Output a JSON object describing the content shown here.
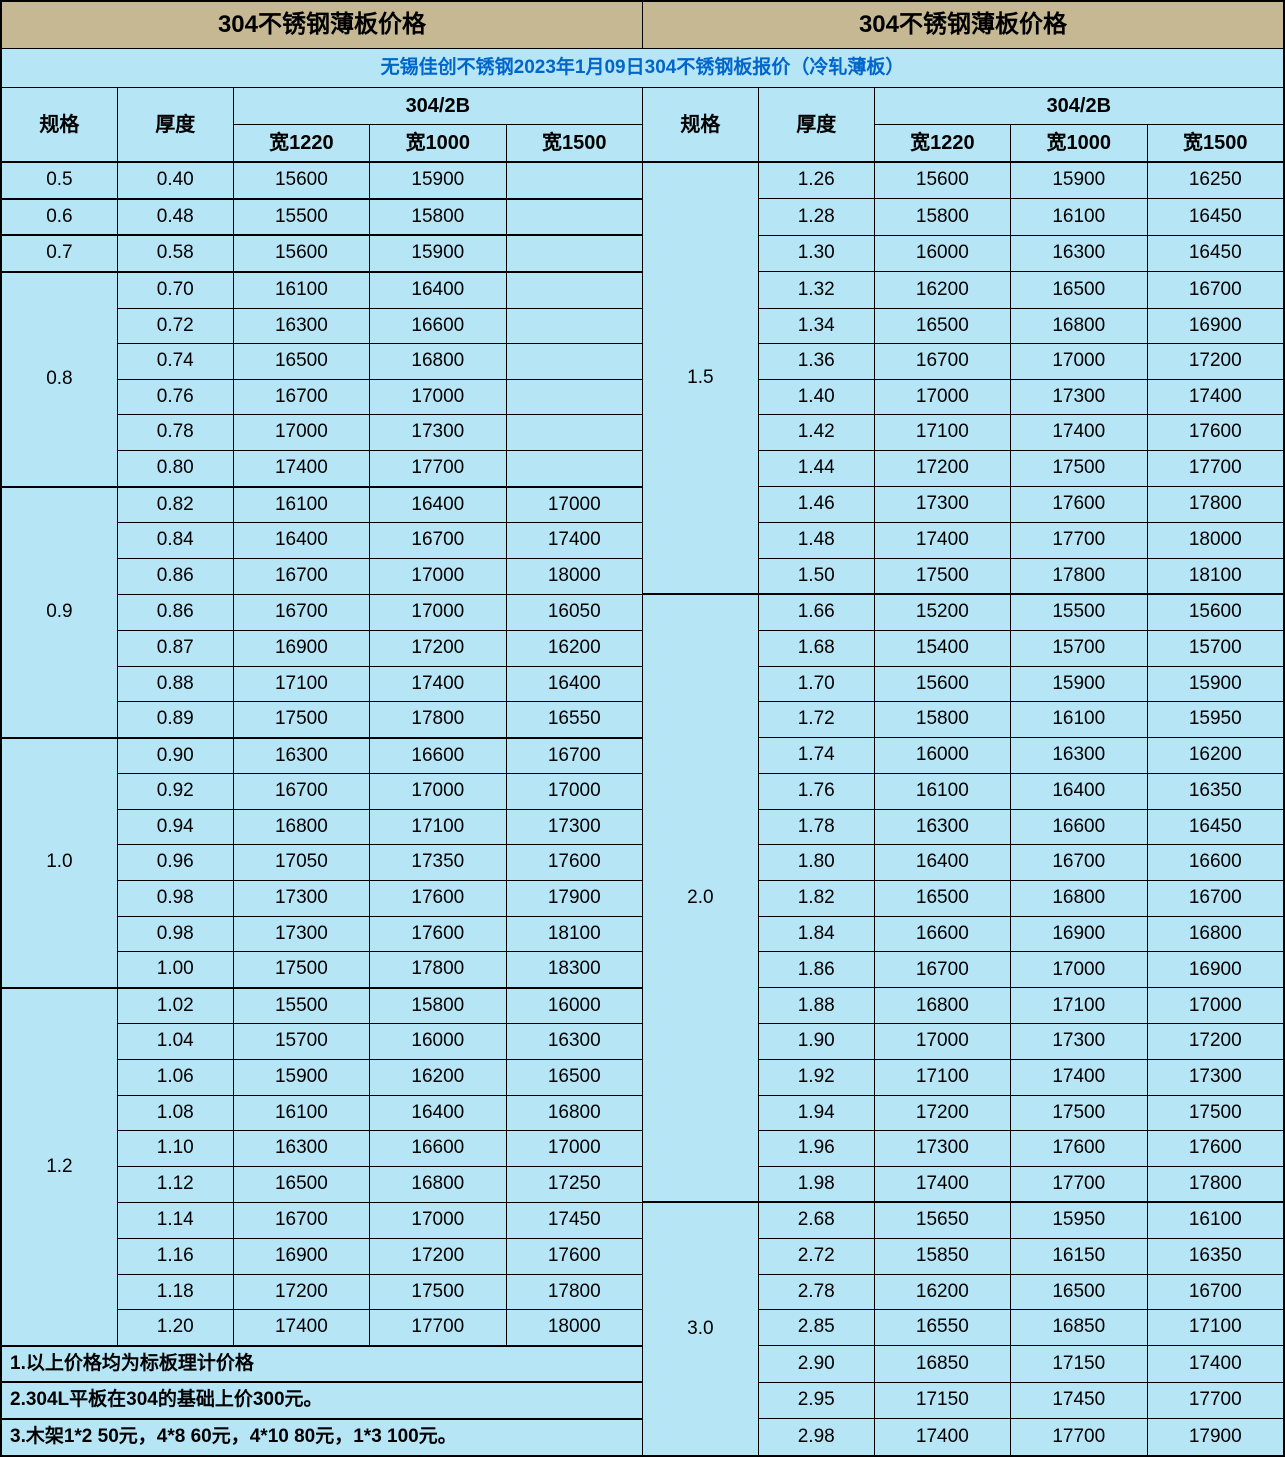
{
  "title_left": "304不锈钢薄板价格",
  "title_right": "304不锈钢薄板价格",
  "subtitle": "无锡佳创不锈钢2023年1月09日304不锈钢板报价（冷轧薄板）",
  "cols": {
    "spec": "规格",
    "thick": "厚度",
    "group": "304/2B",
    "w1220": "宽1220",
    "w1000": "宽1000",
    "w1500": "宽1500"
  },
  "notes": [
    "1.以上价格均为标板理计价格",
    "2.304L平板在304的基础上价300元。",
    "3.木架1*2 50元，4*8 60元，4*10 80元，1*3 100元。"
  ],
  "left_groups": [
    {
      "spec": "0.5",
      "rows": [
        {
          "t": "0.40",
          "a": "15600",
          "b": "15900",
          "c": ""
        }
      ]
    },
    {
      "spec": "0.6",
      "rows": [
        {
          "t": "0.48",
          "a": "15500",
          "b": "15800",
          "c": ""
        }
      ]
    },
    {
      "spec": "0.7",
      "rows": [
        {
          "t": "0.58",
          "a": "15600",
          "b": "15900",
          "c": ""
        }
      ]
    },
    {
      "spec": "0.8",
      "rows": [
        {
          "t": "0.70",
          "a": "16100",
          "b": "16400",
          "c": ""
        },
        {
          "t": "0.72",
          "a": "16300",
          "b": "16600",
          "c": ""
        },
        {
          "t": "0.74",
          "a": "16500",
          "b": "16800",
          "c": ""
        },
        {
          "t": "0.76",
          "a": "16700",
          "b": "17000",
          "c": ""
        },
        {
          "t": "0.78",
          "a": "17000",
          "b": "17300",
          "c": ""
        },
        {
          "t": "0.80",
          "a": "17400",
          "b": "17700",
          "c": ""
        }
      ]
    },
    {
      "spec": "0.9",
      "rows": [
        {
          "t": "0.82",
          "a": "16100",
          "b": "16400",
          "c": "17000"
        },
        {
          "t": "0.84",
          "a": "16400",
          "b": "16700",
          "c": "17400"
        },
        {
          "t": "0.86",
          "a": "16700",
          "b": "17000",
          "c": "18000"
        },
        {
          "t": "0.86",
          "a": "16700",
          "b": "17000",
          "c": "16050"
        },
        {
          "t": "0.87",
          "a": "16900",
          "b": "17200",
          "c": "16200"
        },
        {
          "t": "0.88",
          "a": "17100",
          "b": "17400",
          "c": "16400"
        },
        {
          "t": "0.89",
          "a": "17500",
          "b": "17800",
          "c": "16550"
        }
      ]
    },
    {
      "spec": "1.0",
      "rows": [
        {
          "t": "0.90",
          "a": "16300",
          "b": "16600",
          "c": "16700"
        },
        {
          "t": "0.92",
          "a": "16700",
          "b": "17000",
          "c": "17000"
        },
        {
          "t": "0.94",
          "a": "16800",
          "b": "17100",
          "c": "17300"
        },
        {
          "t": "0.96",
          "a": "17050",
          "b": "17350",
          "c": "17600"
        },
        {
          "t": "0.98",
          "a": "17300",
          "b": "17600",
          "c": "17900"
        },
        {
          "t": "0.98",
          "a": "17300",
          "b": "17600",
          "c": "18100"
        },
        {
          "t": "1.00",
          "a": "17500",
          "b": "17800",
          "c": "18300"
        }
      ]
    },
    {
      "spec": "1.2",
      "rows": [
        {
          "t": "1.02",
          "a": "15500",
          "b": "15800",
          "c": "16000"
        },
        {
          "t": "1.04",
          "a": "15700",
          "b": "16000",
          "c": "16300"
        },
        {
          "t": "1.06",
          "a": "15900",
          "b": "16200",
          "c": "16500"
        },
        {
          "t": "1.08",
          "a": "16100",
          "b": "16400",
          "c": "16800"
        },
        {
          "t": "1.10",
          "a": "16300",
          "b": "16600",
          "c": "17000"
        },
        {
          "t": "1.12",
          "a": "16500",
          "b": "16800",
          "c": "17250"
        },
        {
          "t": "1.14",
          "a": "16700",
          "b": "17000",
          "c": "17450"
        },
        {
          "t": "1.16",
          "a": "16900",
          "b": "17200",
          "c": "17600"
        },
        {
          "t": "1.18",
          "a": "17200",
          "b": "17500",
          "c": "17800"
        },
        {
          "t": "1.20",
          "a": "17400",
          "b": "17700",
          "c": "18000"
        }
      ]
    }
  ],
  "right_groups": [
    {
      "spec": "1.5",
      "rows": [
        {
          "t": "1.26",
          "a": "15600",
          "b": "15900",
          "c": "16250"
        },
        {
          "t": "1.28",
          "a": "15800",
          "b": "16100",
          "c": "16450"
        },
        {
          "t": "1.30",
          "a": "16000",
          "b": "16300",
          "c": "16450"
        },
        {
          "t": "1.32",
          "a": "16200",
          "b": "16500",
          "c": "16700"
        },
        {
          "t": "1.34",
          "a": "16500",
          "b": "16800",
          "c": "16900"
        },
        {
          "t": "1.36",
          "a": "16700",
          "b": "17000",
          "c": "17200"
        },
        {
          "t": "1.40",
          "a": "17000",
          "b": "17300",
          "c": "17400"
        },
        {
          "t": "1.42",
          "a": "17100",
          "b": "17400",
          "c": "17600"
        },
        {
          "t": "1.44",
          "a": "17200",
          "b": "17500",
          "c": "17700"
        },
        {
          "t": "1.46",
          "a": "17300",
          "b": "17600",
          "c": "17800"
        },
        {
          "t": "1.48",
          "a": "17400",
          "b": "17700",
          "c": "18000"
        },
        {
          "t": "1.50",
          "a": "17500",
          "b": "17800",
          "c": "18100"
        }
      ]
    },
    {
      "spec": "2.0",
      "rows": [
        {
          "t": "1.66",
          "a": "15200",
          "b": "15500",
          "c": "15600"
        },
        {
          "t": "1.68",
          "a": "15400",
          "b": "15700",
          "c": "15700"
        },
        {
          "t": "1.70",
          "a": "15600",
          "b": "15900",
          "c": "15900"
        },
        {
          "t": "1.72",
          "a": "15800",
          "b": "16100",
          "c": "15950"
        },
        {
          "t": "1.74",
          "a": "16000",
          "b": "16300",
          "c": "16200"
        },
        {
          "t": "1.76",
          "a": "16100",
          "b": "16400",
          "c": "16350"
        },
        {
          "t": "1.78",
          "a": "16300",
          "b": "16600",
          "c": "16450"
        },
        {
          "t": "1.80",
          "a": "16400",
          "b": "16700",
          "c": "16600"
        },
        {
          "t": "1.82",
          "a": "16500",
          "b": "16800",
          "c": "16700"
        },
        {
          "t": "1.84",
          "a": "16600",
          "b": "16900",
          "c": "16800"
        },
        {
          "t": "1.86",
          "a": "16700",
          "b": "17000",
          "c": "16900"
        },
        {
          "t": "1.88",
          "a": "16800",
          "b": "17100",
          "c": "17000"
        },
        {
          "t": "1.90",
          "a": "17000",
          "b": "17300",
          "c": "17200"
        },
        {
          "t": "1.92",
          "a": "17100",
          "b": "17400",
          "c": "17300"
        },
        {
          "t": "1.94",
          "a": "17200",
          "b": "17500",
          "c": "17500"
        },
        {
          "t": "1.96",
          "a": "17300",
          "b": "17600",
          "c": "17600"
        },
        {
          "t": "1.98",
          "a": "17400",
          "b": "17700",
          "c": "17800"
        }
      ]
    },
    {
      "spec": "3.0",
      "rows": [
        {
          "t": "2.68",
          "a": "15650",
          "b": "15950",
          "c": "16100"
        },
        {
          "t": "2.72",
          "a": "15850",
          "b": "16150",
          "c": "16350"
        },
        {
          "t": "2.78",
          "a": "16200",
          "b": "16500",
          "c": "16700"
        },
        {
          "t": "2.85",
          "a": "16550",
          "b": "16850",
          "c": "17100"
        },
        {
          "t": "2.90",
          "a": "16850",
          "b": "17150",
          "c": "17400"
        },
        {
          "t": "2.95",
          "a": "17150",
          "b": "17450",
          "c": "17700"
        },
        {
          "t": "2.98",
          "a": "17400",
          "b": "17700",
          "c": "17900"
        }
      ]
    }
  ],
  "colors": {
    "header_bg": "#c5b893",
    "body_bg": "#b6e5f6",
    "subtitle_text": "#0066cc",
    "border": "#000000"
  }
}
